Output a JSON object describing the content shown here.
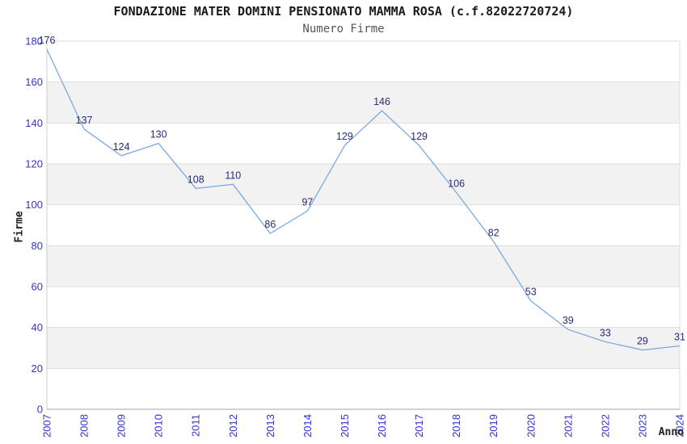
{
  "title": "FONDAZIONE MATER DOMINI PENSIONATO MAMMA ROSA (c.f.82022720724)",
  "subtitle": "Numero Firme",
  "chart_data": {
    "type": "line",
    "x": [
      2007,
      2008,
      2009,
      2010,
      2011,
      2012,
      2013,
      2014,
      2015,
      2016,
      2017,
      2018,
      2019,
      2020,
      2021,
      2022,
      2023,
      2024
    ],
    "values": [
      176,
      137,
      124,
      130,
      108,
      110,
      86,
      97,
      129,
      146,
      129,
      106,
      82,
      53,
      39,
      33,
      29,
      31
    ],
    "xlabel": "Anno",
    "ylabel": "Firme",
    "ylim": [
      0,
      180
    ],
    "yticks": [
      0,
      20,
      40,
      60,
      80,
      100,
      120,
      140,
      160,
      180
    ],
    "ytick_step": 20,
    "grid": true,
    "legend": "none",
    "point_labels_shown": true,
    "colors": {
      "line": "#7aa9e3",
      "point_label": "#28287c",
      "tick_label": "#3333cc",
      "band_fill": "#f2f2f2",
      "gridline": "#dddddd",
      "x_axis_line": "#a6a6a6",
      "y_axis_line": "#cccccc",
      "title_text": "#1a1a1a",
      "subtitle_text": "#555555"
    }
  }
}
